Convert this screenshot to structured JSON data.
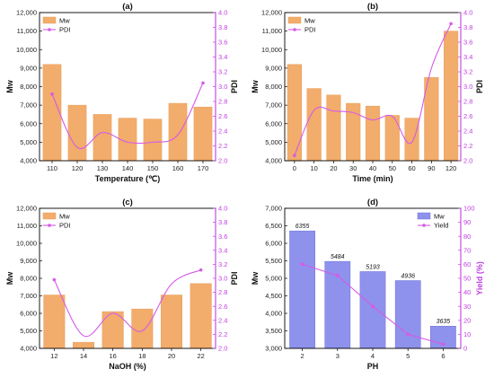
{
  "colors": {
    "bar_orange": "#F2AC6B",
    "bar_blue": "#8E92EC",
    "line_purple": "#D55AE8",
    "right_axis_purple": "#C040E0"
  },
  "chart_data": [
    {
      "type": "bar",
      "title": "(a)",
      "xlabel": "Temperature (℃)",
      "ylabel": "Mw",
      "y2label": "PDI",
      "categories": [
        "110",
        "120",
        "130",
        "140",
        "150",
        "160",
        "170"
      ],
      "ylim": [
        4000,
        12000
      ],
      "yticks": [
        "4,000",
        "5,000",
        "6,000",
        "7,000",
        "8,000",
        "9,000",
        "10,000",
        "11,000",
        "12,000"
      ],
      "y2lim": [
        2.0,
        4.0
      ],
      "y2ticks": [
        "2.0",
        "2.2",
        "2.4",
        "2.6",
        "2.8",
        "3.0",
        "3.2",
        "3.4",
        "3.6",
        "3.8",
        "4.0"
      ],
      "legend": [
        "Mw",
        "PDI"
      ],
      "legend_position": "top-left",
      "series": [
        {
          "name": "Mw",
          "kind": "bar",
          "axis": "left",
          "values": [
            9200,
            7000,
            6500,
            6300,
            6250,
            7100,
            6900
          ]
        },
        {
          "name": "PDI",
          "kind": "line",
          "axis": "right",
          "values": [
            2.9,
            2.18,
            2.38,
            2.25,
            2.25,
            2.35,
            3.05
          ]
        }
      ]
    },
    {
      "type": "bar",
      "title": "(b)",
      "xlabel": "Time (min)",
      "ylabel": "Mw",
      "y2label": "PDI",
      "categories": [
        "0",
        "10",
        "20",
        "30",
        "40",
        "50",
        "60",
        "90",
        "120"
      ],
      "ylim": [
        4000,
        12000
      ],
      "yticks": [
        "4,000",
        "5,000",
        "6,000",
        "7,000",
        "8,000",
        "9,000",
        "10,000",
        "11,000",
        "12,000"
      ],
      "y2lim": [
        2.0,
        4.0
      ],
      "y2ticks": [
        "2.0",
        "2.2",
        "2.4",
        "2.6",
        "2.8",
        "3.0",
        "3.2",
        "3.4",
        "3.6",
        "3.8",
        "4.0"
      ],
      "legend": [
        "Mw",
        "PDI"
      ],
      "legend_position": "top-left",
      "series": [
        {
          "name": "Mw",
          "kind": "bar",
          "axis": "left",
          "values": [
            9200,
            7900,
            7550,
            7100,
            6950,
            6450,
            6300,
            8500,
            11000
          ]
        },
        {
          "name": "PDI",
          "kind": "line",
          "axis": "right",
          "values": [
            2.07,
            2.68,
            2.67,
            2.65,
            2.55,
            2.6,
            2.25,
            3.25,
            3.85
          ]
        }
      ]
    },
    {
      "type": "bar",
      "title": "(c)",
      "xlabel": "NaOH (%)",
      "ylabel": "Mw",
      "y2label": "PDI",
      "categories": [
        "12",
        "14",
        "16",
        "18",
        "20",
        "22"
      ],
      "ylim": [
        4000,
        12000
      ],
      "yticks": [
        "4,000",
        "5,000",
        "6,000",
        "7,000",
        "8,000",
        "9,000",
        "10,000",
        "11,000",
        "12,000"
      ],
      "y2lim": [
        2.0,
        4.0
      ],
      "y2ticks": [
        "2.0",
        "2.2",
        "2.4",
        "2.6",
        "2.8",
        "3.0",
        "3.2",
        "3.4",
        "3.6",
        "3.8",
        "4.0"
      ],
      "legend": [
        "Mw",
        "PDI"
      ],
      "legend_position": "top-left",
      "series": [
        {
          "name": "Mw",
          "kind": "bar",
          "axis": "left",
          "values": [
            7050,
            4350,
            6100,
            6250,
            7050,
            7700
          ]
        },
        {
          "name": "PDI",
          "kind": "line",
          "axis": "right",
          "values": [
            2.98,
            2.18,
            2.5,
            2.25,
            2.92,
            3.12
          ]
        }
      ]
    },
    {
      "type": "bar",
      "title": "(d)",
      "xlabel": "PH",
      "ylabel": "Mw",
      "y2label": "Yield (%)",
      "categories": [
        "2",
        "3",
        "4",
        "5",
        "6"
      ],
      "ylim": [
        3000,
        7000
      ],
      "yticks": [
        "3,000",
        "3,500",
        "4,000",
        "4,500",
        "5,000",
        "5,500",
        "6,000",
        "6,500",
        "7,000"
      ],
      "y2lim": [
        0,
        100
      ],
      "y2ticks": [
        "0",
        "10",
        "20",
        "30",
        "40",
        "50",
        "60",
        "70",
        "80",
        "90",
        "100"
      ],
      "legend": [
        "Mw",
        "Yield"
      ],
      "legend_position": "top-right",
      "series": [
        {
          "name": "Mw",
          "kind": "bar",
          "axis": "left",
          "values": [
            6355,
            5484,
            5193,
            4936,
            3635
          ],
          "labels": [
            "6355",
            "5484",
            "5193",
            "4936",
            "3635"
          ]
        },
        {
          "name": "Yield",
          "kind": "line",
          "axis": "right",
          "values": [
            60,
            52,
            30,
            10,
            3
          ]
        }
      ]
    }
  ]
}
